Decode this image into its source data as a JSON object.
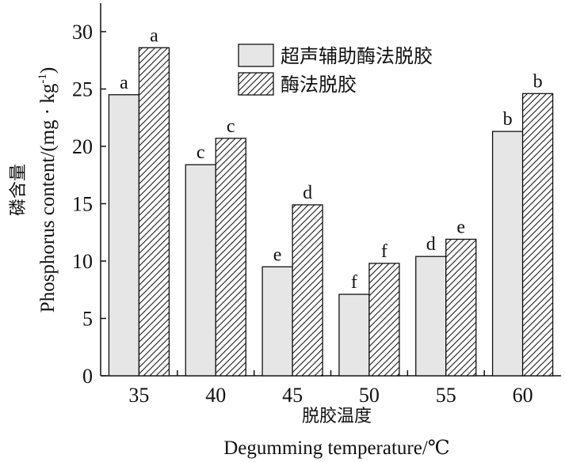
{
  "chart_data": {
    "type": "bar",
    "categories": [
      "35",
      "40",
      "45",
      "50",
      "55",
      "60"
    ],
    "series": [
      {
        "name": "超声辅助酶法脱胶",
        "values": [
          24.5,
          18.4,
          9.5,
          7.1,
          10.4,
          21.3
        ],
        "labels": [
          "a",
          "c",
          "e",
          "f",
          "d",
          "b"
        ],
        "color": "#e6e6e6",
        "pattern": "solid"
      },
      {
        "name": "酶法脱胶",
        "values": [
          28.6,
          20.7,
          14.9,
          9.8,
          11.9,
          24.6
        ],
        "labels": [
          "a",
          "c",
          "d",
          "f",
          "e",
          "b"
        ],
        "color": "#ffffff",
        "pattern": "hatch"
      }
    ],
    "ylim": [
      0,
      30
    ],
    "yticks": [
      "0",
      "5",
      "10",
      "15",
      "20",
      "25",
      "30"
    ],
    "xlabel_cn": "脱胶温度",
    "xlabel_en": "Degumming temperature/℃",
    "ylabel_cn": "磷含量",
    "ylabel_en_base": "Phosphorus content/(mg · kg",
    "ylabel_en_sup": "-1",
    "ylabel_en_close": ")",
    "legend_position": "top-center",
    "grid": false
  }
}
